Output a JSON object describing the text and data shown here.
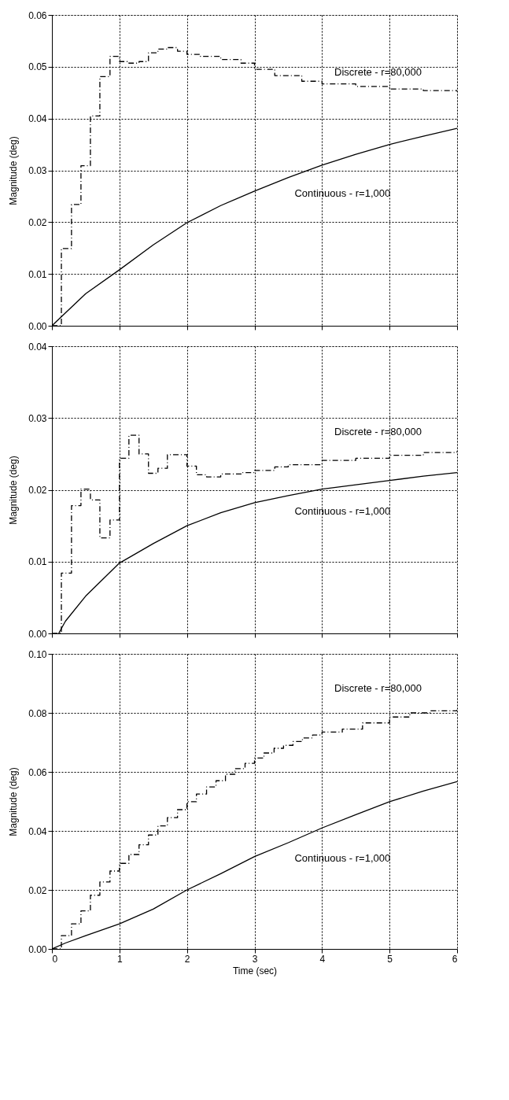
{
  "chart_data": [
    {
      "type": "line",
      "ylabel": "Magnitude (deg)",
      "xlim": [
        0,
        6
      ],
      "xticks": [
        0,
        1,
        2,
        3,
        4,
        5,
        6
      ],
      "ylim": [
        0,
        0.06
      ],
      "yticks": [
        {
          "value": 0,
          "label": "0.00"
        },
        {
          "value": 0.01,
          "label": "0.01"
        },
        {
          "value": 0.02,
          "label": "0.02"
        },
        {
          "value": 0.03,
          "label": "0.03"
        },
        {
          "value": 0.04,
          "label": "0.04"
        },
        {
          "value": 0.05,
          "label": "0.05"
        },
        {
          "value": 0.06,
          "label": "0.06"
        }
      ],
      "grid": true,
      "tick_labels": "y",
      "series": [
        {
          "type": "step",
          "color": "#000000",
          "line_style": "dashed",
          "x": [
            0,
            0.14,
            0.29,
            0.43,
            0.57,
            0.71,
            0.86,
            1.0,
            1.14,
            1.29,
            1.43,
            1.57,
            1.71,
            1.86,
            2.0,
            2.2,
            2.5,
            2.8,
            3.0,
            3.3,
            3.7,
            4.0,
            4.5,
            5.0,
            5.5,
            6.0
          ],
          "values": [
            0,
            0.0149,
            0.0234,
            0.0309,
            0.0405,
            0.0481,
            0.052,
            0.051,
            0.0507,
            0.051,
            0.0527,
            0.0534,
            0.0537,
            0.053,
            0.0524,
            0.052,
            0.0514,
            0.0507,
            0.0495,
            0.0483,
            0.0472,
            0.0467,
            0.0462,
            0.0457,
            0.0454,
            0.0452
          ]
        },
        {
          "type": "line",
          "color": "#000000",
          "line_style": "solid",
          "x": [
            0,
            0.5,
            1.0,
            1.5,
            2.0,
            2.5,
            3.0,
            3.5,
            4.0,
            4.5,
            5.0,
            5.5,
            6.0
          ],
          "values": [
            0,
            0.0062,
            0.0108,
            0.0156,
            0.0199,
            0.0232,
            0.026,
            0.0286,
            0.031,
            0.0331,
            0.035,
            0.0366,
            0.0381
          ]
        }
      ],
      "annotations": [
        "Discrete - r=80,000",
        "Continuous - r=1,000"
      ]
    },
    {
      "type": "line",
      "ylabel": "Magnitude (deg)",
      "xlim": [
        0,
        6
      ],
      "xticks": [
        0,
        1,
        2,
        3,
        4,
        5,
        6
      ],
      "ylim": [
        0,
        0.04
      ],
      "yticks": [
        {
          "value": 0,
          "label": "0.00"
        },
        {
          "value": 0.01,
          "label": "0.01"
        },
        {
          "value": 0.02,
          "label": "0.02"
        },
        {
          "value": 0.03,
          "label": "0.03"
        },
        {
          "value": 0.04,
          "label": "0.04"
        }
      ],
      "grid": true,
      "tick_labels": "y",
      "series": [
        {
          "type": "step",
          "color": "#000000",
          "line_style": "dashed",
          "x": [
            0,
            0.14,
            0.29,
            0.43,
            0.57,
            0.71,
            0.86,
            1.0,
            1.14,
            1.29,
            1.43,
            1.57,
            1.71,
            1.86,
            2.0,
            2.14,
            2.29,
            2.5,
            2.8,
            3.0,
            3.3,
            3.5,
            4.0,
            4.5,
            5.0,
            5.5,
            6.0
          ],
          "values": [
            0,
            0.0084,
            0.0178,
            0.0201,
            0.0186,
            0.0133,
            0.0158,
            0.0244,
            0.0276,
            0.025,
            0.0223,
            0.023,
            0.0249,
            0.0249,
            0.0233,
            0.0221,
            0.0218,
            0.0222,
            0.0224,
            0.0227,
            0.0232,
            0.0235,
            0.0241,
            0.0244,
            0.0248,
            0.0252,
            0.0254
          ]
        },
        {
          "type": "line",
          "color": "#000000",
          "line_style": "solid",
          "x": [
            0.1,
            0.2,
            0.5,
            1.0,
            1.5,
            2.0,
            2.5,
            3.0,
            3.5,
            4.0,
            4.5,
            5.0,
            5.5,
            6.0
          ],
          "values": [
            0,
            0.0017,
            0.0052,
            0.0098,
            0.0125,
            0.015,
            0.0168,
            0.0182,
            0.0192,
            0.0201,
            0.0207,
            0.0213,
            0.0219,
            0.0224
          ]
        }
      ],
      "annotations": [
        "Discrete - r=80,000",
        "Continuous - r=1,000"
      ]
    },
    {
      "type": "line",
      "ylabel": "Magnitude (deg)",
      "xlabel": "Time (sec)",
      "xlim": [
        0,
        6
      ],
      "xticks": [
        0,
        1,
        2,
        3,
        4,
        5,
        6
      ],
      "ylim": [
        0,
        0.1
      ],
      "yticks": [
        {
          "value": 0,
          "label": "0.00"
        },
        {
          "value": 0.02,
          "label": "0.02"
        },
        {
          "value": 0.04,
          "label": "0.04"
        },
        {
          "value": 0.06,
          "label": "0.06"
        },
        {
          "value": 0.08,
          "label": "0.08"
        },
        {
          "value": 0.1,
          "label": "0.10"
        }
      ],
      "grid": true,
      "series": [
        {
          "type": "step",
          "color": "#000000",
          "line_style": "dashed",
          "x": [
            0,
            0.14,
            0.29,
            0.43,
            0.57,
            0.71,
            0.86,
            1.0,
            1.14,
            1.29,
            1.43,
            1.57,
            1.71,
            1.86,
            2.0,
            2.14,
            2.29,
            2.43,
            2.57,
            2.71,
            2.86,
            3.0,
            3.14,
            3.29,
            3.43,
            3.57,
            3.71,
            3.86,
            4.0,
            4.3,
            4.6,
            5.0,
            5.3,
            5.6,
            6.0
          ],
          "values": [
            0,
            0.0045,
            0.0085,
            0.0129,
            0.0182,
            0.0227,
            0.0264,
            0.029,
            0.032,
            0.0353,
            0.0386,
            0.0417,
            0.0445,
            0.0472,
            0.0499,
            0.0525,
            0.0549,
            0.057,
            0.0592,
            0.0611,
            0.0629,
            0.0647,
            0.0664,
            0.068,
            0.069,
            0.0703,
            0.0715,
            0.0725,
            0.0735,
            0.0745,
            0.0766,
            0.0786,
            0.08,
            0.0807,
            0.0819
          ]
        },
        {
          "type": "line",
          "color": "#000000",
          "line_style": "solid",
          "x": [
            0,
            0.2,
            0.5,
            1.0,
            1.5,
            2.0,
            2.5,
            3.0,
            3.5,
            4.0,
            4.5,
            5.0,
            5.5,
            6.0
          ],
          "values": [
            0,
            0.002,
            0.0045,
            0.0085,
            0.0135,
            0.02,
            0.0255,
            0.0313,
            0.036,
            0.041,
            0.0455,
            0.0499,
            0.0535,
            0.0567
          ]
        }
      ],
      "annotations": [
        "Discrete - r=80,000",
        "Continuous - r=1,000"
      ]
    }
  ]
}
